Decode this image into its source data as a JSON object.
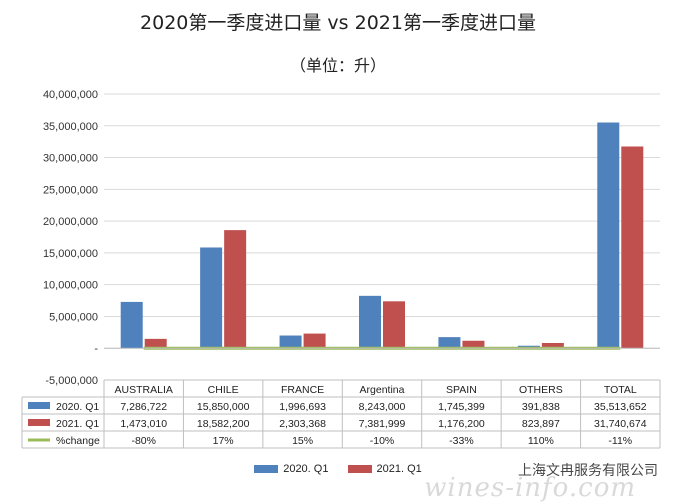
{
  "chart_data": {
    "type": "bar",
    "title": "2020第一季度进口量 vs 2021第一季度进口量",
    "subtitle": "（单位：升）",
    "categories": [
      "AUSTRALIA",
      "CHILE",
      "FRANCE",
      "Argentina",
      "SPAIN",
      "OTHERS",
      "TOTAL"
    ],
    "series": [
      {
        "name": "2020. Q1",
        "color": "#4f81bd",
        "values": [
          7286722,
          15850000,
          1996693,
          8243000,
          1745399,
          391838,
          35513652
        ],
        "labels": [
          "7,286,722",
          "15,850,000",
          "1,996,693",
          "8,243,000",
          "1,745,399",
          "391,838",
          "35,513,652"
        ]
      },
      {
        "name": "2021. Q1",
        "color": "#c0504d",
        "values": [
          1473010,
          18582200,
          2303368,
          7381999,
          1176200,
          823897,
          31740674
        ],
        "labels": [
          "1,473,010",
          "18,582,200",
          "2,303,368",
          "7,381,999",
          "1,176,200",
          "823,897",
          "31,740,674"
        ]
      }
    ],
    "line_series": {
      "name": "%change",
      "color": "#9bbb59",
      "values": [
        -80,
        17,
        15,
        -10,
        -33,
        110,
        -11
      ],
      "labels": [
        "-80%",
        "17%",
        "15%",
        "-10%",
        "-33%",
        "110%",
        "-11%"
      ]
    },
    "ylim": [
      -5000000,
      40000000
    ],
    "yticks": [
      40000000,
      35000000,
      30000000,
      25000000,
      20000000,
      15000000,
      10000000,
      5000000,
      0,
      -5000000
    ],
    "ytick_labels": [
      "40,000,000",
      "35,000,000",
      "30,000,000",
      "25,000,000",
      "20,000,000",
      "15,000,000",
      "10,000,000",
      "5,000,000",
      "-",
      "-5,000,000"
    ],
    "grid": true,
    "legend": "bottom",
    "data_table": true
  },
  "watermark": {
    "company": "上海文冉服务有限公司",
    "site": "wines-info.com"
  }
}
